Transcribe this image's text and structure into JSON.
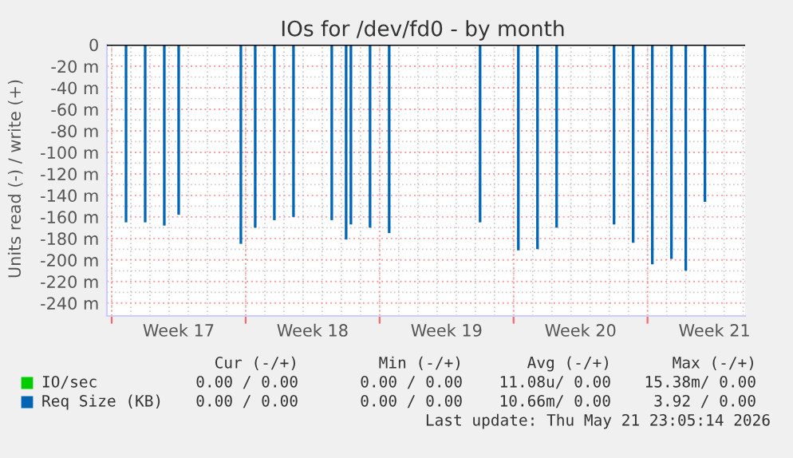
{
  "chart_data": {
    "type": "bar",
    "title": "IOs for /dev/fd0 - by month",
    "ylabel": "Units read (-) / write (+)",
    "categories": [
      null,
      null,
      null,
      null,
      null,
      null,
      null,
      null,
      null,
      null,
      null,
      null,
      null,
      null,
      "Week 17",
      null,
      null,
      null,
      null,
      null,
      null,
      null,
      null,
      null,
      null,
      null,
      null,
      null,
      null,
      null,
      null,
      null,
      null,
      null,
      null,
      null,
      null,
      null,
      null,
      null,
      null,
      null,
      "Week 18",
      null,
      null,
      null,
      null,
      null,
      null,
      null,
      null,
      null,
      null,
      null,
      null,
      null,
      null,
      null,
      null,
      null,
      null,
      null,
      null,
      null,
      null,
      null,
      null,
      null,
      null,
      null,
      "Week 19",
      null,
      null,
      null,
      null,
      null,
      null,
      null,
      null,
      null,
      null,
      null,
      null,
      null,
      null,
      null,
      null,
      null,
      null,
      null,
      null,
      null,
      null,
      null,
      null,
      null,
      null,
      null,
      "Week 20",
      null,
      null,
      null,
      null,
      null,
      null,
      null,
      null,
      null,
      null,
      null,
      null,
      null,
      null,
      null,
      null,
      null,
      null,
      null,
      null,
      null,
      null,
      null,
      null,
      null,
      null,
      null,
      "Week 21",
      null,
      null,
      null,
      null,
      null,
      null
    ],
    "series": [
      {
        "name": "IO/sec",
        "color": "#00cc00",
        "values": [
          null,
          null,
          null,
          null,
          null,
          null,
          null,
          null,
          null,
          null,
          null,
          null,
          null,
          null,
          null,
          null,
          null,
          null,
          null,
          null,
          null,
          null,
          null,
          null,
          null,
          null,
          null,
          null,
          null,
          null,
          null,
          null,
          null,
          null,
          null,
          null,
          null,
          null,
          null,
          null,
          null,
          null,
          null,
          null,
          null,
          null,
          null,
          null,
          null,
          null,
          null,
          null,
          null,
          null,
          null,
          null,
          null,
          null,
          null,
          null,
          null,
          null,
          null,
          null,
          null,
          null,
          null,
          null,
          null,
          null,
          null,
          null,
          null,
          null,
          null,
          null,
          null,
          null,
          null,
          null,
          null,
          null,
          null,
          null,
          null,
          null,
          null,
          null,
          null,
          null,
          null,
          null,
          null,
          null,
          null,
          null,
          null,
          null,
          null,
          null,
          null,
          null,
          null,
          null,
          null,
          null,
          null,
          null,
          null,
          null,
          null,
          null,
          null,
          null,
          null,
          null,
          null,
          null,
          null,
          null,
          null,
          null,
          null,
          null,
          null,
          null,
          null,
          null,
          null,
          null,
          null,
          null,
          null
        ]
      },
      {
        "name": "Req Size (KB)",
        "color": "#0066b3",
        "values": [
          null,
          null,
          null,
          -165,
          null,
          null,
          null,
          -165,
          null,
          null,
          null,
          -168,
          null,
          null,
          -158,
          null,
          null,
          null,
          null,
          null,
          null,
          null,
          null,
          null,
          null,
          null,
          null,
          -185,
          null,
          null,
          -170,
          null,
          null,
          null,
          -163,
          null,
          null,
          null,
          -160,
          null,
          null,
          null,
          null,
          null,
          null,
          null,
          -163,
          null,
          null,
          -181,
          -167,
          null,
          null,
          null,
          -170,
          null,
          null,
          null,
          -175,
          null,
          null,
          null,
          null,
          null,
          null,
          null,
          null,
          null,
          null,
          null,
          null,
          null,
          null,
          null,
          null,
          null,
          null,
          -165,
          null,
          null,
          null,
          null,
          null,
          null,
          null,
          -191,
          null,
          null,
          null,
          -190,
          null,
          null,
          null,
          -170,
          null,
          null,
          null,
          null,
          null,
          null,
          null,
          null,
          null,
          null,
          null,
          -167,
          null,
          null,
          null,
          -184,
          null,
          null,
          null,
          -204,
          null,
          null,
          null,
          -199,
          null,
          null,
          -210,
          null,
          null,
          null,
          -146,
          null,
          null,
          null,
          null,
          null,
          null,
          null,
          null
        ]
      }
    ],
    "ylim": [
      -252,
      0
    ],
    "yticks": [
      {
        "value": 0,
        "label": "0"
      },
      {
        "value": -20,
        "label": "-20 m"
      },
      {
        "value": -40,
        "label": "-40 m"
      },
      {
        "value": -60,
        "label": "-60 m"
      },
      {
        "value": -80,
        "label": "-80 m"
      },
      {
        "value": -100,
        "label": "-100 m"
      },
      {
        "value": -120,
        "label": "-120 m"
      },
      {
        "value": -140,
        "label": "-140 m"
      },
      {
        "value": -160,
        "label": "-160 m"
      },
      {
        "value": -180,
        "label": "-180 m"
      },
      {
        "value": -200,
        "label": "-200 m"
      },
      {
        "value": -220,
        "label": "-220 m"
      },
      {
        "value": -240,
        "label": "-240 m"
      }
    ],
    "grid": true,
    "legend": "bottom left",
    "annotations": [
      "Cur (-/+)",
      "Min (-/+)",
      "Avg (-/+)",
      "Max (-/+)",
      "0.00 / 0.00",
      "0.00 / 0.00",
      "11.08u/ 0.00",
      "15.38m/ 0.00",
      "0.00 / 0.00",
      "0.00 / 0.00",
      "10.66m/ 0.00",
      "3.92 / 0.00",
      "Last update: Thu May 21 23:05:14 2026"
    ]
  }
}
